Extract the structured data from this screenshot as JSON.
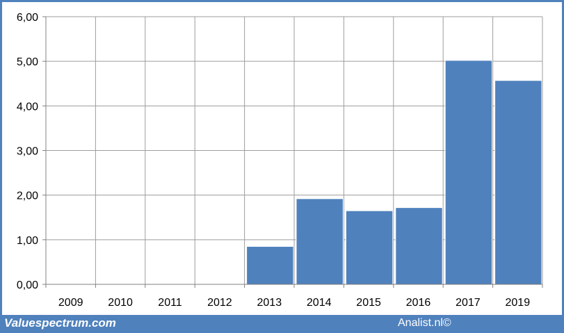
{
  "chart_data": {
    "type": "bar",
    "title": "",
    "xlabel": "",
    "ylabel": "",
    "categories": [
      "2009",
      "2010",
      "2011",
      "2012",
      "2013",
      "2014",
      "2015",
      "2016",
      "2017",
      "2019"
    ],
    "values": [
      0,
      0,
      0,
      0,
      0.85,
      1.92,
      1.65,
      1.72,
      5.02,
      4.57
    ],
    "ylim": [
      0,
      6
    ],
    "yticks": [
      "0,00",
      "1,00",
      "2,00",
      "3,00",
      "4,00",
      "5,00",
      "6,00"
    ],
    "grid": true,
    "legend": "none",
    "bar_color": "#4f81bd",
    "frame_color": "#4f81bd"
  },
  "footer": {
    "left_text": "Valuespectrum.com",
    "right_text": "Analist.nl©"
  }
}
